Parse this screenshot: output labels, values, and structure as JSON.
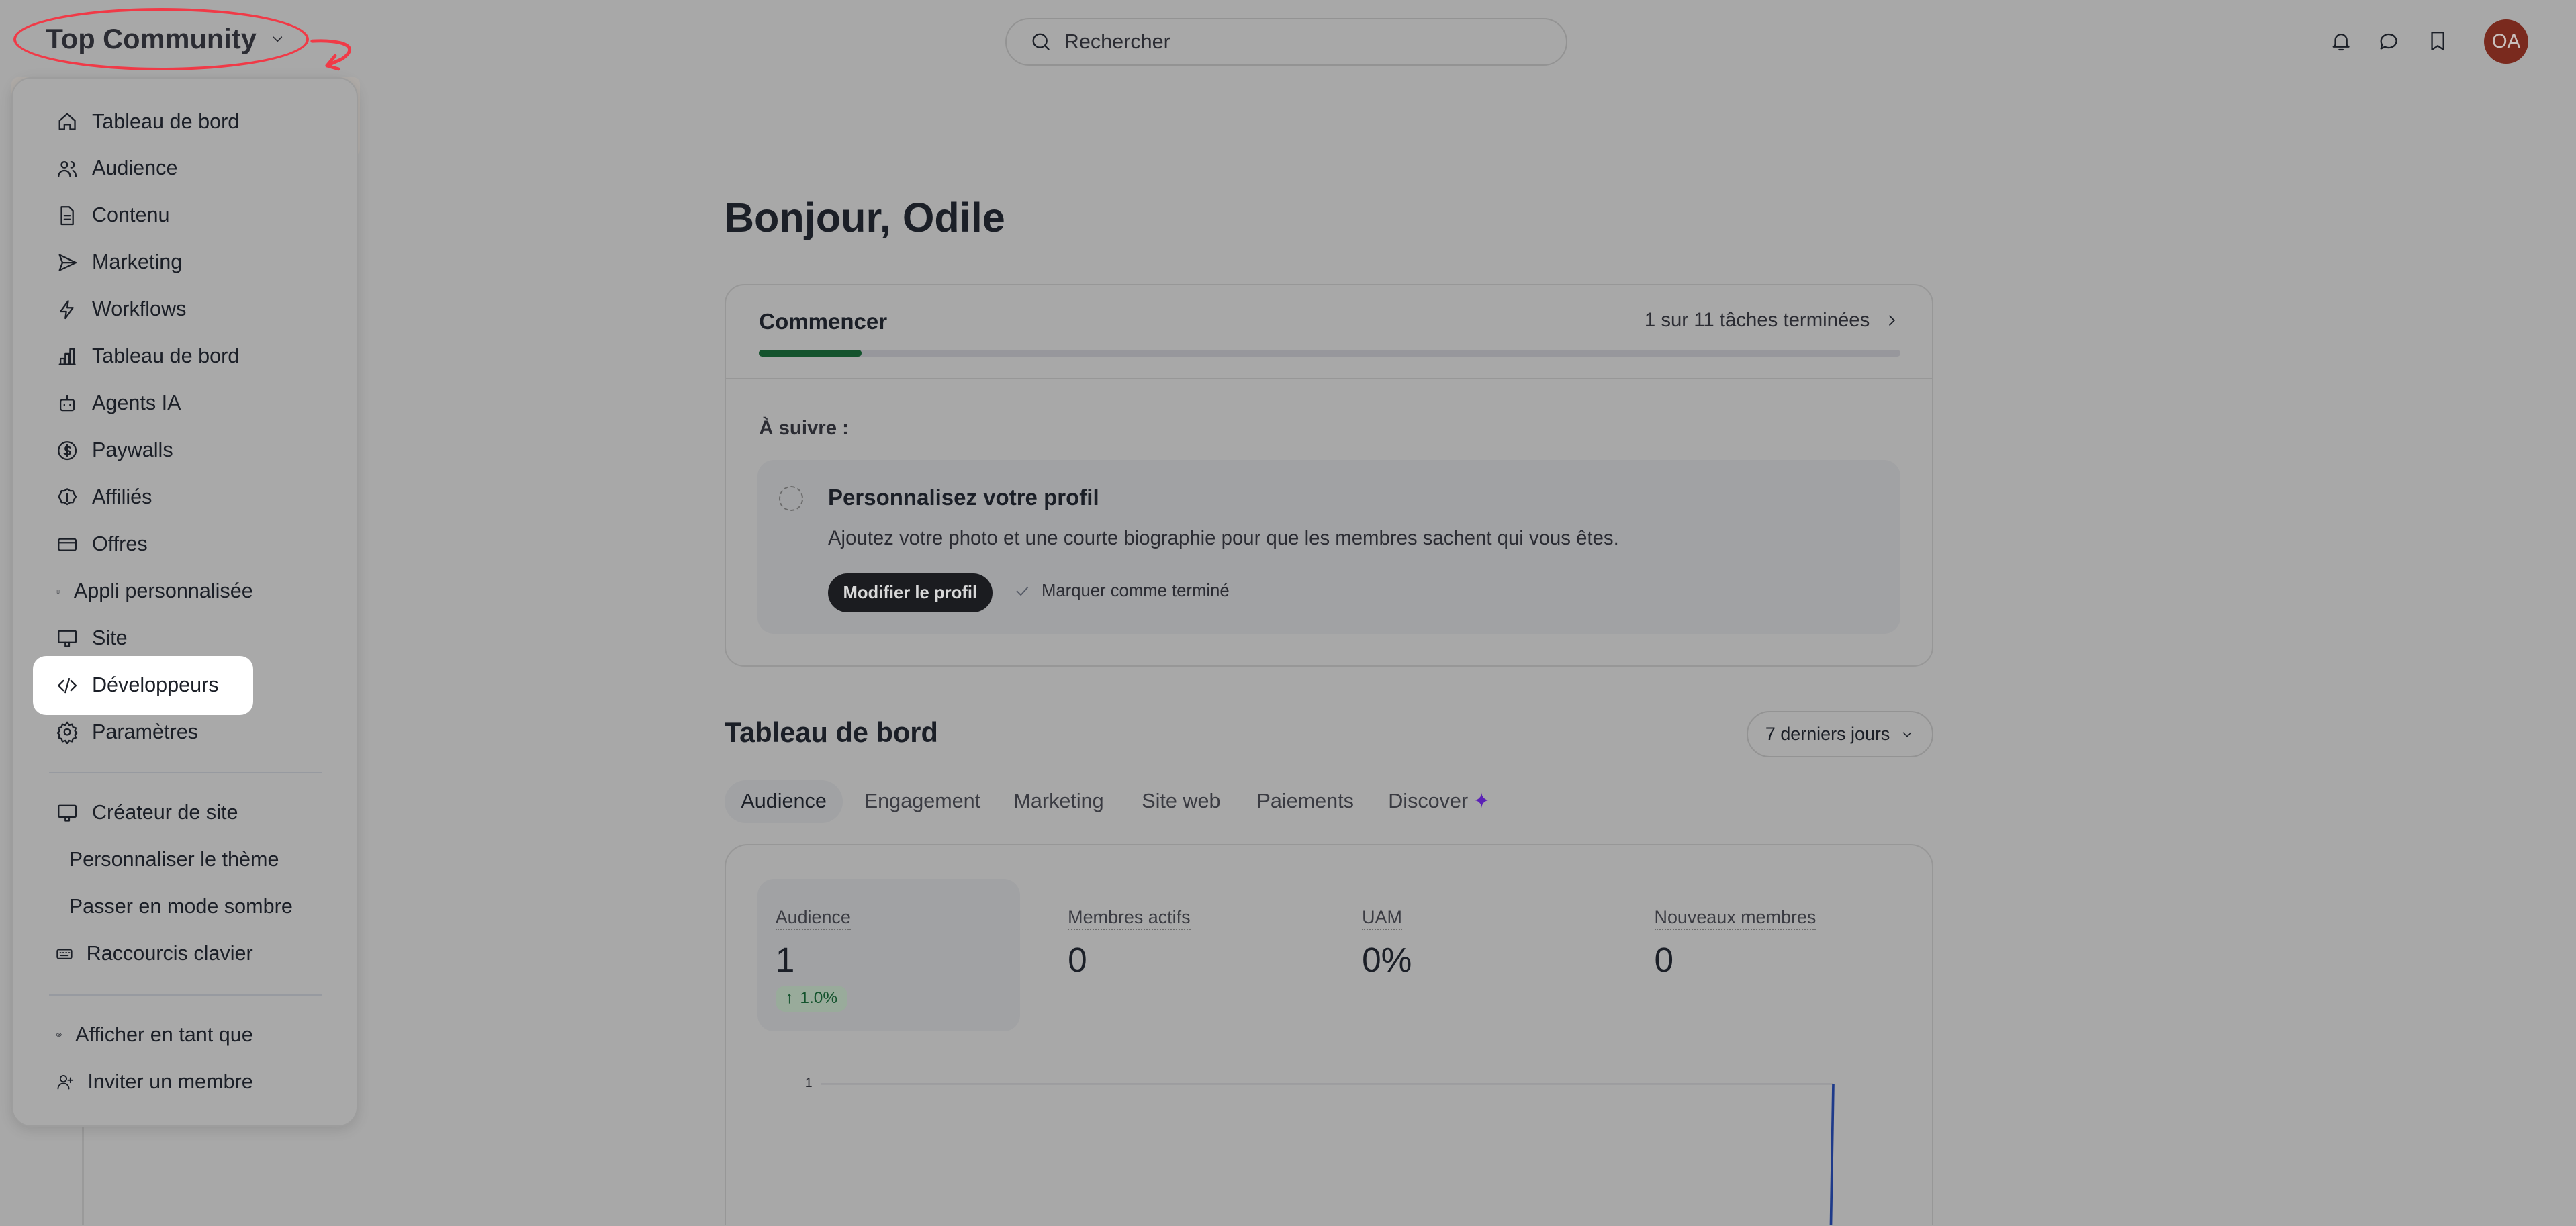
{
  "header": {
    "brand": "Top Community",
    "search_placeholder": "Rechercher",
    "avatar_initials": "OA",
    "avatar_color": "#7a2a1e"
  },
  "menu": {
    "items": [
      {
        "label": "Tableau de bord",
        "icon": "home-icon"
      },
      {
        "label": "Audience",
        "icon": "users-icon"
      },
      {
        "label": "Contenu",
        "icon": "document-icon"
      },
      {
        "label": "Marketing",
        "icon": "send-icon"
      },
      {
        "label": "Workflows",
        "icon": "bolt-icon"
      },
      {
        "label": "Tableau de bord",
        "icon": "bar-chart-icon"
      },
      {
        "label": "Agents IA",
        "icon": "bot-icon"
      },
      {
        "label": "Paywalls",
        "icon": "dollar-icon"
      },
      {
        "label": "Affiliés",
        "icon": "badge-dollar-icon"
      },
      {
        "label": "Offres",
        "icon": "credit-card-icon"
      },
      {
        "label": "Appli personnalisée",
        "icon": "smartphone-icon"
      },
      {
        "label": "Site",
        "icon": "monitor-icon"
      },
      {
        "label": "Développeurs",
        "icon": "code-icon",
        "active": true
      },
      {
        "label": "Paramètres",
        "icon": "gear-icon"
      }
    ],
    "secondary": [
      {
        "label": "Créateur de site",
        "icon": "monitor-icon"
      },
      {
        "label": "Personnaliser le thème",
        "icon": "palette-icon"
      },
      {
        "label": "Passer en mode sombre",
        "icon": "moon-icon"
      },
      {
        "label": "Raccourcis clavier",
        "icon": "keyboard-icon"
      }
    ],
    "tertiary": [
      {
        "label": "Afficher en tant que",
        "icon": "eye-icon"
      },
      {
        "label": "Inviter un membre",
        "icon": "user-plus-icon"
      }
    ]
  },
  "main": {
    "greeting": "Bonjour, Odile",
    "onboarding": {
      "title": "Commencer",
      "progress_text": "1 sur 11 tâches terminées",
      "progress_fraction": 0.09,
      "progress_color": "#14532d",
      "next_label": "À suivre :",
      "task": {
        "title": "Personnalisez votre profil",
        "description": "Ajoutez votre photo et une courte biographie pour que les membres sachent qui vous êtes.",
        "primary_button": "Modifier le profil",
        "secondary_button": "Marquer comme terminé"
      }
    },
    "dashboard": {
      "title": "Tableau de bord",
      "period": "7 derniers jours",
      "tabs": [
        "Audience",
        "Engagement",
        "Marketing",
        "Site web",
        "Paiements",
        "Discover"
      ],
      "active_tab": "Audience",
      "stats": [
        {
          "label": "Audience",
          "value": "1",
          "change": "1.0%",
          "trend": "up"
        },
        {
          "label": "Membres actifs",
          "value": "0"
        },
        {
          "label": "UAM",
          "value": "0%"
        },
        {
          "label": "Nouveaux membres",
          "value": "0"
        }
      ]
    }
  },
  "chart_data": {
    "type": "line",
    "y_ticks": [
      "1"
    ],
    "series": [
      {
        "values": [
          0,
          1
        ]
      }
    ],
    "line_color": "#1e3a8a",
    "grid": true
  }
}
